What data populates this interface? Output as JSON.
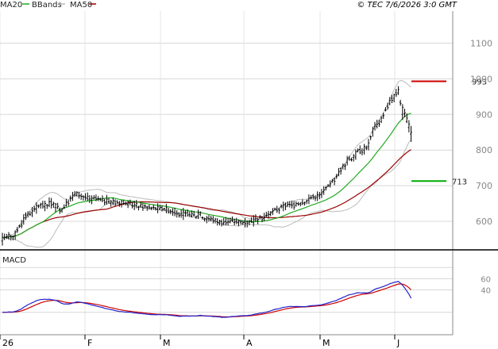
{
  "chart_data": [
    {
      "type": "candlestick",
      "copyright": "© TEC 7/6/2026 3:0 GMT",
      "legend": [
        {
          "name": "MA20",
          "color": "#22aa22"
        },
        {
          "name": "BBands",
          "color": "#bbbbbb"
        },
        {
          "name": "MA50",
          "color": "#990000"
        }
      ],
      "y_ticks": [
        600,
        700,
        800,
        900,
        1000,
        1100
      ],
      "y_tick_labels": [
        "600",
        "700",
        "800",
        "900",
        "1000",
        "1100"
      ],
      "ylim": [
        520,
        1190
      ],
      "x_labels": [
        "26",
        "F",
        "M",
        "A",
        "M",
        "J"
      ],
      "levels": [
        {
          "value": 993,
          "label": "993",
          "color": "#cc0000"
        },
        {
          "value": 713,
          "label": "713",
          "color": "#00aa00"
        }
      ],
      "anchors": [
        [
          0,
          545,
          555
        ],
        [
          6,
          560,
          570
        ],
        [
          10,
          600,
          610
        ],
        [
          16,
          635,
          645
        ],
        [
          22,
          645,
          655
        ],
        [
          28,
          630,
          635
        ],
        [
          34,
          675,
          680
        ],
        [
          42,
          660,
          665
        ],
        [
          50,
          655,
          655
        ],
        [
          58,
          650,
          650
        ],
        [
          68,
          640,
          638
        ],
        [
          76,
          635,
          635
        ],
        [
          82,
          625,
          622
        ],
        [
          88,
          620,
          618
        ],
        [
          92,
          615,
          625
        ],
        [
          96,
          605,
          610
        ],
        [
          104,
          595,
          598
        ],
        [
          110,
          600,
          598
        ],
        [
          116,
          598,
          600
        ],
        [
          120,
          603,
          605
        ],
        [
          126,
          620,
          625
        ],
        [
          132,
          640,
          645
        ],
        [
          138,
          645,
          650
        ],
        [
          144,
          660,
          665
        ],
        [
          150,
          675,
          680
        ],
        [
          154,
          700,
          705
        ],
        [
          158,
          730,
          740
        ],
        [
          162,
          765,
          775
        ],
        [
          166,
          780,
          795
        ],
        [
          170,
          800,
          810
        ],
        [
          172,
          810,
          820
        ],
        [
          174,
          850,
          860
        ],
        [
          178,
          880,
          890
        ],
        [
          182,
          930,
          940
        ],
        [
          184,
          945,
          955
        ],
        [
          186,
          960,
          970
        ],
        [
          188,
          900,
          920
        ],
        [
          190,
          880,
          890
        ],
        [
          192,
          845,
          850
        ]
      ],
      "ma_windows": {
        "ma20": 20,
        "ma50": 50
      },
      "bbands": {
        "window": 20,
        "width": 2
      }
    },
    {
      "type": "line",
      "title": "MACD",
      "y_ticks": [
        40,
        60
      ],
      "y_tick_labels": [
        "40",
        "60"
      ],
      "ylim": [
        -40,
        110
      ],
      "series": [
        {
          "role": "macd",
          "color": "#2222cc"
        },
        {
          "role": "signal",
          "color": "#cc0000"
        }
      ],
      "ema": {
        "fast": 12,
        "slow": 26,
        "signal": 9
      }
    }
  ]
}
